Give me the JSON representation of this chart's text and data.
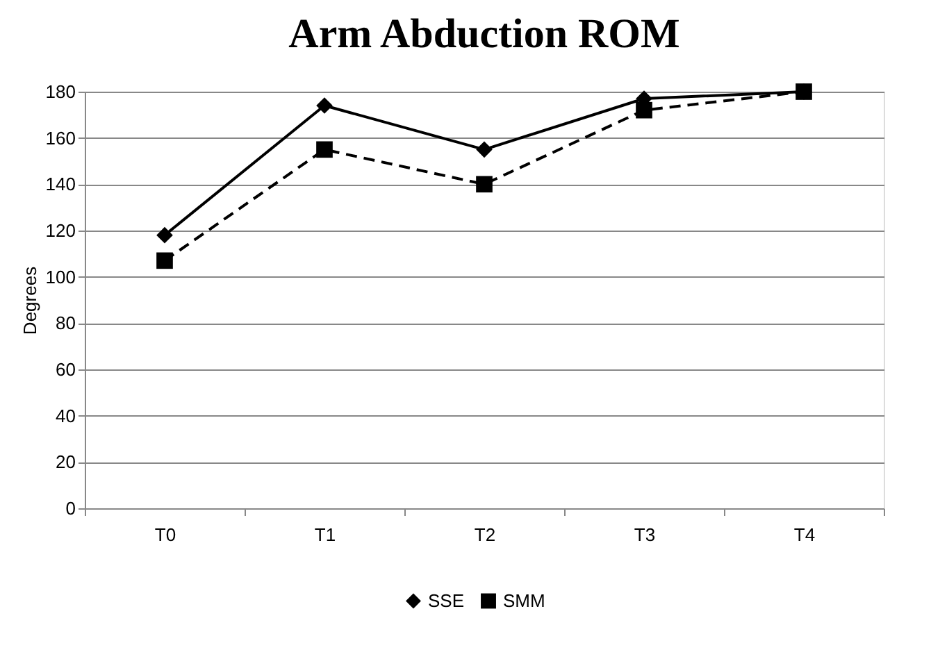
{
  "chart_data": {
    "type": "line",
    "title": "Arm Abduction ROM",
    "ylabel": "Degrees",
    "categories": [
      "T0",
      "T1",
      "T2",
      "T3",
      "T4"
    ],
    "series": [
      {
        "name": "SSE",
        "color": "#000000",
        "marker": "diamond",
        "line_style": "solid",
        "values": [
          118,
          174,
          155,
          177,
          180
        ]
      },
      {
        "name": "SMM",
        "color": "#000000",
        "marker": "square",
        "line_style": "dashed",
        "values": [
          107,
          155,
          140,
          172,
          180
        ]
      }
    ],
    "ylim": [
      0,
      180
    ],
    "yticks": [
      0,
      20,
      40,
      60,
      80,
      100,
      120,
      140,
      160,
      180
    ],
    "grid": "y",
    "legend": "bottom"
  }
}
